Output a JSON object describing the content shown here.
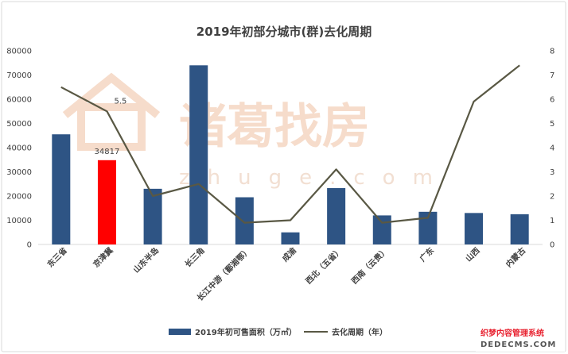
{
  "chart_data": {
    "type": "bar",
    "title": "2019年初部分城市(群)去化周期",
    "categories": [
      "东三省",
      "京津冀",
      "山东半岛",
      "长三角",
      "长江中游（鄱湘鄂）",
      "成渝",
      "西北（五省）",
      "西南（云贵）",
      "广东",
      "山西",
      "内蒙古"
    ],
    "series": [
      {
        "name": "2019年初可售面积（万㎡）",
        "type": "bar",
        "axis": "left",
        "color": "#2e5484",
        "values": [
          45500,
          34817,
          23000,
          74000,
          19500,
          5000,
          23300,
          12000,
          13500,
          13000,
          12500
        ]
      },
      {
        "name": "去化周期（年）",
        "type": "line",
        "axis": "right",
        "color": "#595844",
        "values": [
          6.5,
          5.5,
          2.0,
          2.5,
          0.9,
          1.0,
          3.1,
          0.9,
          1.1,
          5.9,
          7.4
        ]
      }
    ],
    "highlight": {
      "index": 1,
      "color": "#ff0000"
    },
    "y_left": {
      "min": 0,
      "max": 80000,
      "ticks": [
        "0",
        "10000",
        "20000",
        "30000",
        "40000",
        "50000",
        "60000",
        "70000",
        "80000"
      ]
    },
    "y_right": {
      "min": 0,
      "max": 8,
      "ticks": [
        "0",
        "1",
        "2",
        "3",
        "4",
        "5",
        "6",
        "7",
        "8"
      ]
    },
    "annotations": [
      "34817",
      "5.5"
    ],
    "grid": false,
    "legend_position": "bottom"
  },
  "watermark": {
    "text": "诸葛找房",
    "subtext": "zhuge.com"
  },
  "corner_logo": {
    "line1": "织梦内容管理系统",
    "line2": "DEDECMS.COM"
  }
}
